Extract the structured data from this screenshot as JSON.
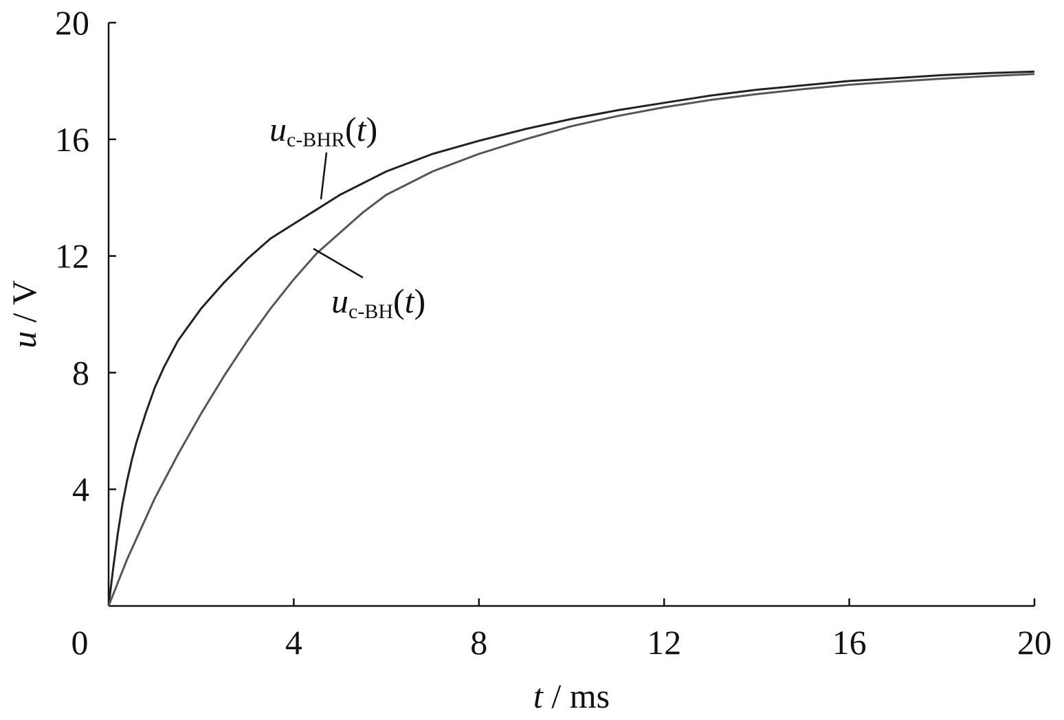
{
  "chart_data": {
    "type": "line",
    "xlabel": {
      "var": "t",
      "unit": " / ms"
    },
    "ylabel": {
      "var": "u",
      "unit": " / V"
    },
    "xlim": [
      0,
      20
    ],
    "ylim": [
      0,
      20
    ],
    "xticks": [
      "0",
      "4",
      "8",
      "12",
      "16",
      "20"
    ],
    "yticks": [
      "4",
      "8",
      "12",
      "16",
      "20"
    ],
    "grid": false,
    "series": [
      {
        "name": "u_c-BHR(t)",
        "label": {
          "var": "u",
          "sub": "c-BHR",
          "arg": "(t)"
        },
        "color": "#222222",
        "x": [
          0,
          0.1,
          0.2,
          0.3,
          0.4,
          0.5,
          0.6,
          0.8,
          1.0,
          1.2,
          1.5,
          2.0,
          2.5,
          3.0,
          3.5,
          4.0,
          4.5,
          5.0,
          6.0,
          7.0,
          8.0,
          9.0,
          10.0,
          11.0,
          12.0,
          13.0,
          14.0,
          15.0,
          16.0,
          17.0,
          18.0,
          19.0,
          20.0
        ],
        "y": [
          0,
          1.3,
          2.5,
          3.5,
          4.3,
          5.0,
          5.6,
          6.6,
          7.5,
          8.2,
          9.1,
          10.2,
          11.1,
          11.9,
          12.6,
          13.1,
          13.6,
          14.1,
          14.9,
          15.5,
          15.95,
          16.35,
          16.7,
          17.0,
          17.25,
          17.5,
          17.7,
          17.85,
          18.0,
          18.1,
          18.2,
          18.27,
          18.32
        ]
      },
      {
        "name": "u_c-BH(t)",
        "label": {
          "var": "u",
          "sub": "c-BH",
          "arg": "(t)"
        },
        "color": "#555555",
        "x": [
          0,
          0.2,
          0.4,
          0.6,
          0.8,
          1.0,
          1.5,
          2.0,
          2.5,
          3.0,
          3.5,
          4.0,
          4.5,
          5.0,
          5.5,
          6.0,
          7.0,
          8.0,
          9.0,
          10.0,
          11.0,
          12.0,
          13.0,
          14.0,
          15.0,
          16.0,
          17.0,
          18.0,
          19.0,
          20.0
        ],
        "y": [
          0,
          0.8,
          1.6,
          2.3,
          3.0,
          3.7,
          5.2,
          6.6,
          7.9,
          9.1,
          10.2,
          11.2,
          12.1,
          12.8,
          13.5,
          14.1,
          14.9,
          15.5,
          16.0,
          16.45,
          16.8,
          17.1,
          17.35,
          17.55,
          17.72,
          17.87,
          17.98,
          18.08,
          18.17,
          18.24
        ]
      }
    ]
  }
}
